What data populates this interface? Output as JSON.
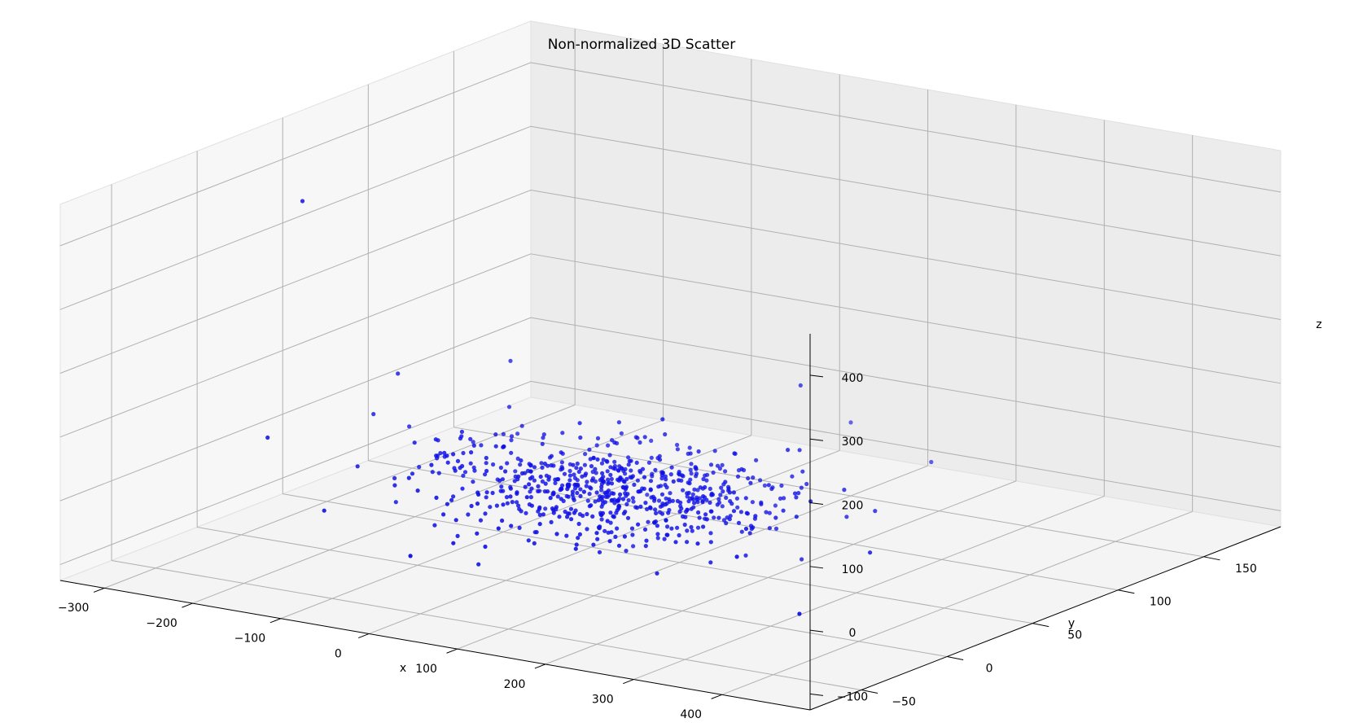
{
  "chart_data": {
    "type": "scatter",
    "projection": "3d",
    "title": "Non-normalized 3D Scatter",
    "xlabel": "x",
    "ylabel": "y",
    "zlabel": "z",
    "xlim": [
      -350,
      500
    ],
    "ylim": [
      -80,
      195
    ],
    "zlim": [
      -125,
      465
    ],
    "xticks": [
      -300,
      -200,
      -100,
      0,
      100,
      200,
      300,
      400
    ],
    "yticks": [
      -50,
      0,
      50,
      100,
      150
    ],
    "zticks": [
      -100,
      0,
      100,
      200,
      300,
      400
    ],
    "marker_color": "#1010e6",
    "pane_colors": {
      "floor": "#f4f4f4",
      "back": "#ececec",
      "side": "#f7f7f7",
      "grid": "#b0b0b0"
    },
    "cluster": {
      "count": 700,
      "x_mean": 50,
      "x_sd": 95,
      "y_mean": 35,
      "y_sd": 22,
      "z_mean": -8,
      "z_sd": 28
    },
    "outliers": [
      {
        "x": -250,
        "y": 10,
        "z": 400
      },
      {
        "x": 420,
        "y": -45,
        "z": -30
      },
      {
        "x": 100,
        "y": 150,
        "z": -10
      },
      {
        "x": 190,
        "y": 40,
        "z": -45
      },
      {
        "x": 230,
        "y": 130,
        "z": -20
      },
      {
        "x": 320,
        "y": -30,
        "z": 20
      },
      {
        "x": -200,
        "y": 40,
        "z": 110
      },
      {
        "x": -150,
        "y": 80,
        "z": 100
      },
      {
        "x": 140,
        "y": 100,
        "z": 110
      },
      {
        "x": 100,
        "y": 40,
        "z": 110
      }
    ]
  }
}
